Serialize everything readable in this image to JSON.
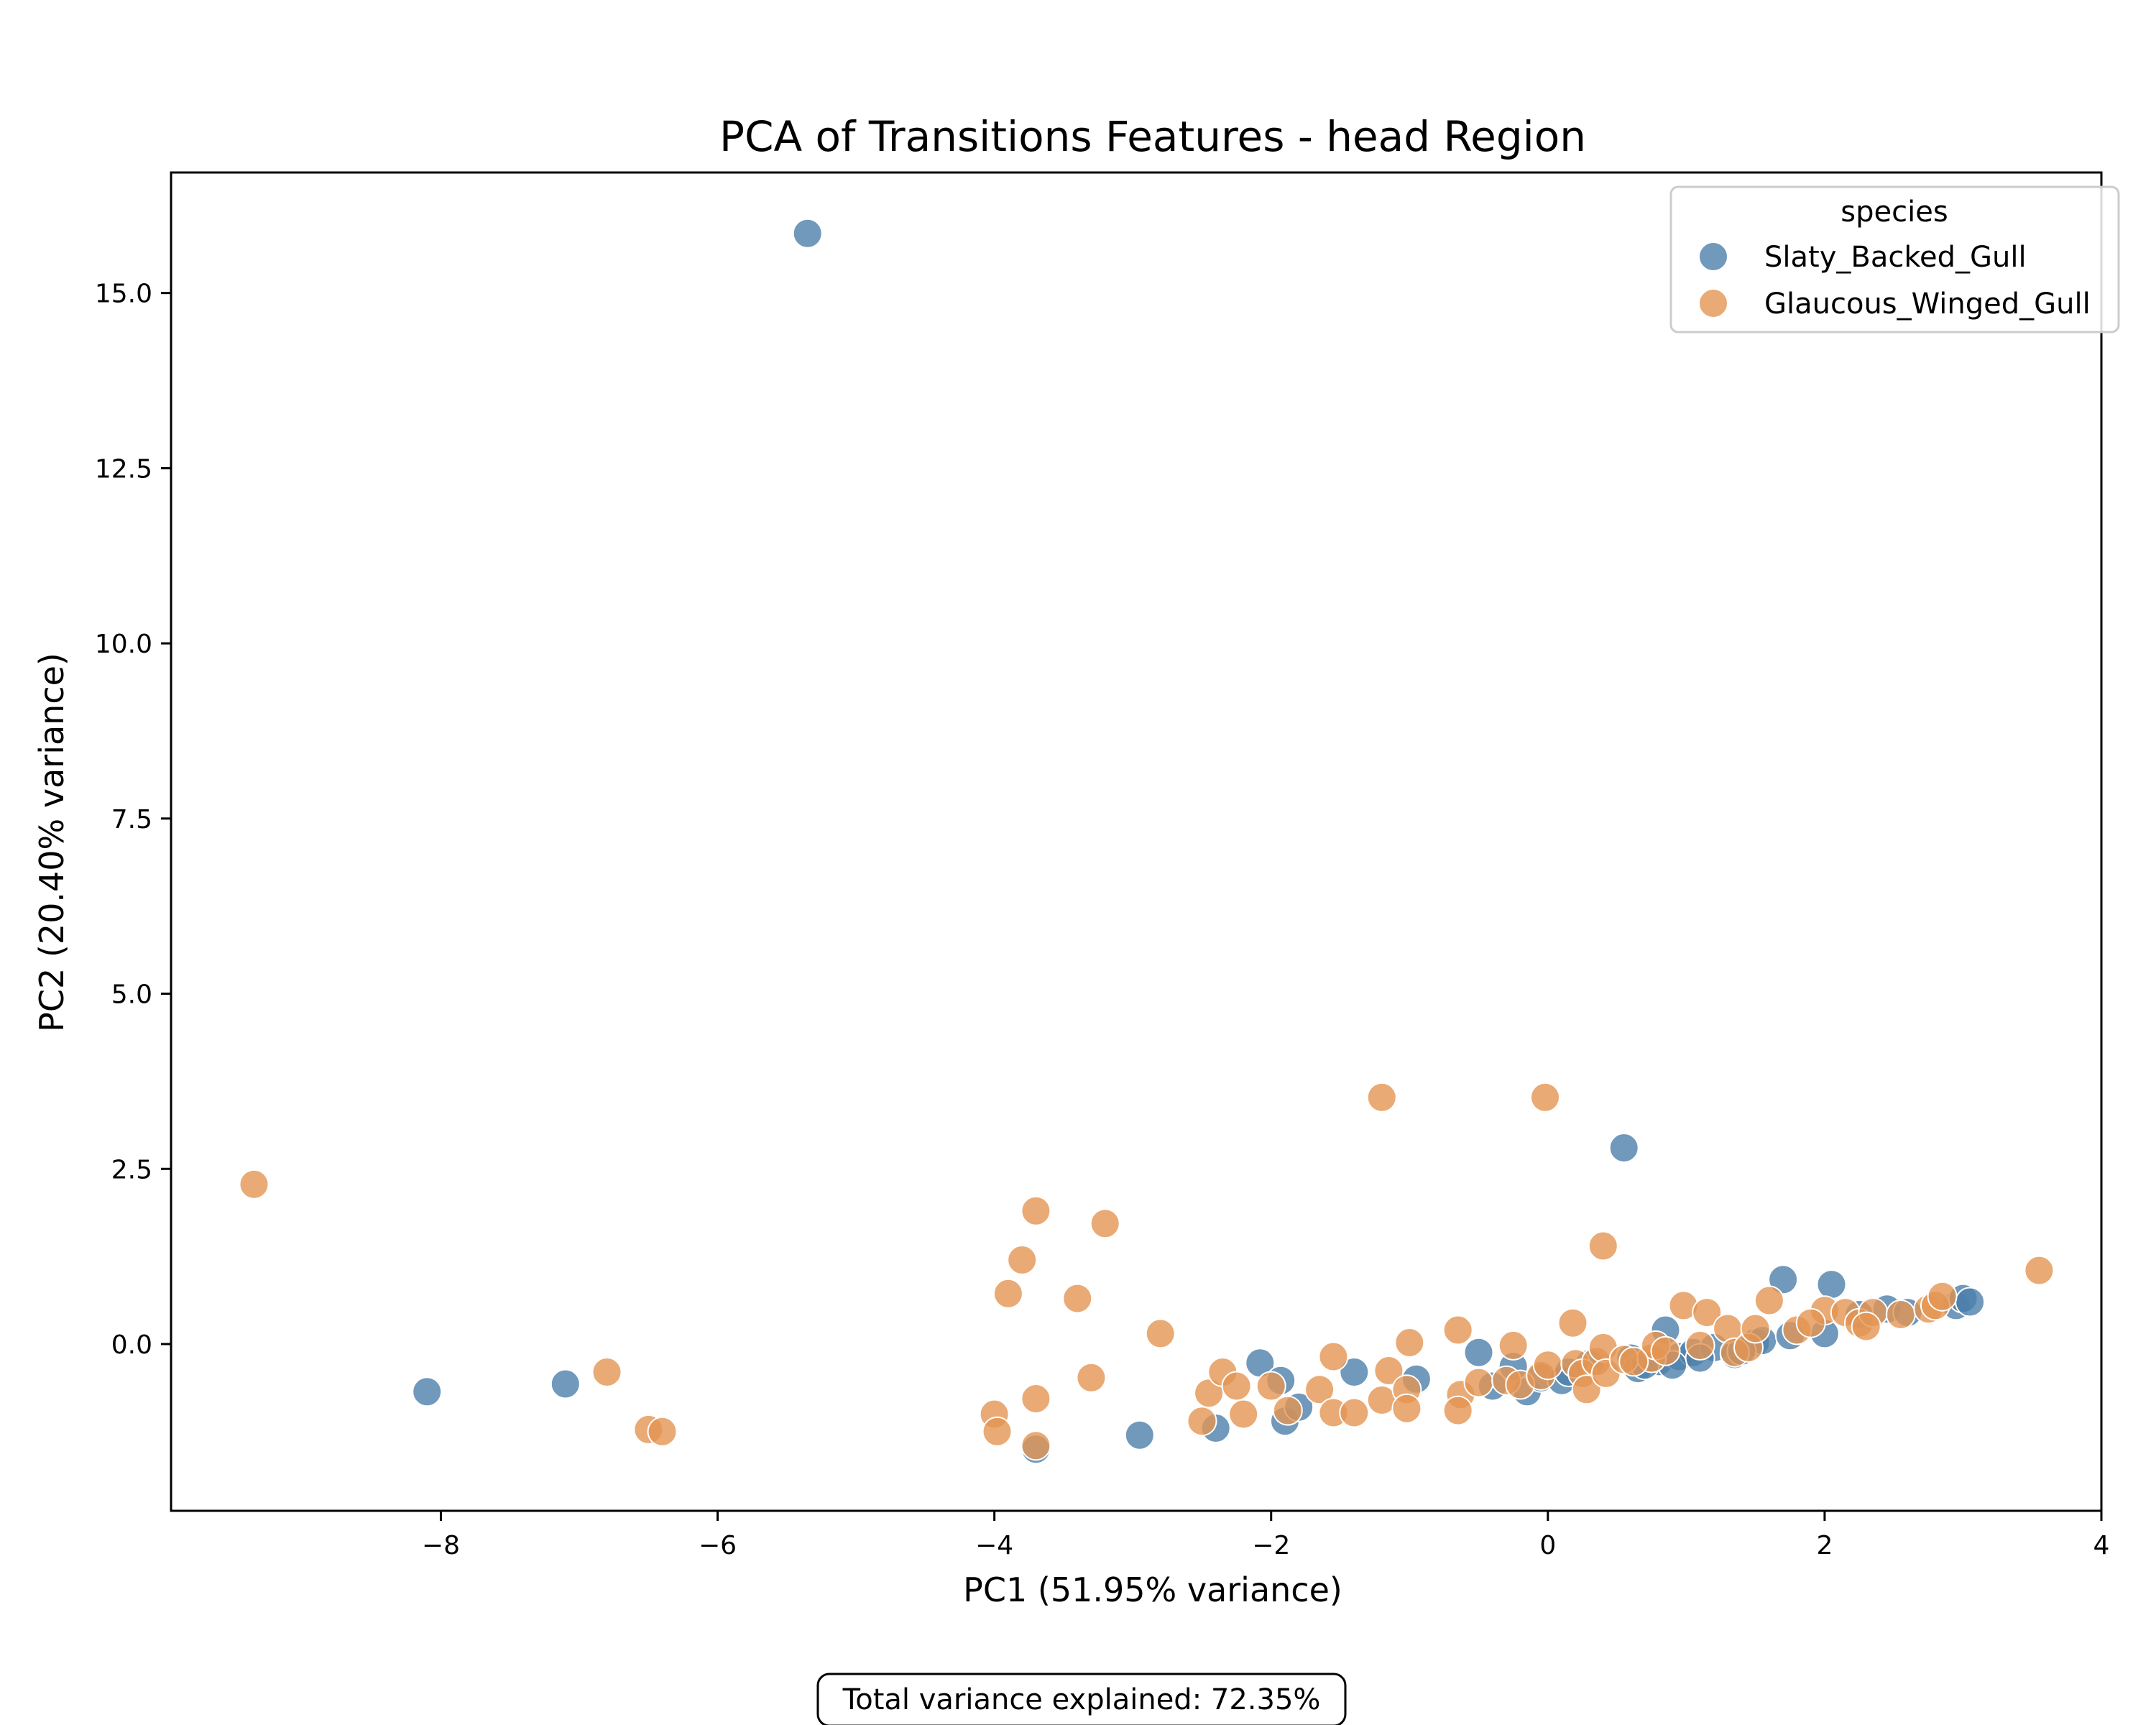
{
  "chart_data": {
    "type": "scatter",
    "title": "PCA of Transitions Features - head Region",
    "xlabel": "PC1 (51.95% variance)",
    "ylabel": "PC2 (20.40% variance)",
    "xlim": [
      -9.95,
      4.0
    ],
    "ylim": [
      -2.38,
      16.72
    ],
    "xticks": [
      -8,
      -6,
      -4,
      -2,
      0,
      2,
      4
    ],
    "xtick_labels": [
      "−8",
      "−6",
      "−4",
      "−2",
      "0",
      "2",
      "4"
    ],
    "yticks": [
      0.0,
      2.5,
      5.0,
      7.5,
      10.0,
      12.5,
      15.0
    ],
    "ytick_labels": [
      "0.0",
      "2.5",
      "5.0",
      "7.5",
      "10.0",
      "12.5",
      "15.0"
    ],
    "grid": false,
    "legend": {
      "title": "species",
      "placement": "top-right"
    },
    "annotation": "Total variance explained: 72.35%",
    "series": [
      {
        "name": "Slaty_Backed_Gull",
        "color": "#4c7fab",
        "points": [
          [
            -5.35,
            15.85
          ],
          [
            -8.1,
            -0.68
          ],
          [
            -7.1,
            -0.57
          ],
          [
            -3.7,
            -1.5
          ],
          [
            -2.95,
            -1.3
          ],
          [
            -2.4,
            -1.2
          ],
          [
            -2.08,
            -0.27
          ],
          [
            -1.93,
            -0.52
          ],
          [
            -1.9,
            -1.1
          ],
          [
            -1.8,
            -0.9
          ],
          [
            -1.4,
            -0.4
          ],
          [
            -0.95,
            -0.5
          ],
          [
            -0.5,
            -0.12
          ],
          [
            -0.25,
            -0.32
          ],
          [
            -0.15,
            -0.68
          ],
          [
            -0.05,
            -0.48
          ],
          [
            0.1,
            -0.52
          ],
          [
            0.55,
            2.8
          ],
          [
            0.6,
            -0.2
          ],
          [
            0.65,
            -0.35
          ],
          [
            0.8,
            -0.25
          ],
          [
            0.85,
            0.2
          ],
          [
            0.95,
            -0.18
          ],
          [
            1.05,
            -0.12
          ],
          [
            1.2,
            -0.05
          ],
          [
            1.35,
            -0.15
          ],
          [
            1.5,
            0.02
          ],
          [
            1.55,
            0.05
          ],
          [
            1.7,
            0.92
          ],
          [
            1.75,
            0.12
          ],
          [
            2.0,
            0.15
          ],
          [
            2.05,
            0.85
          ],
          [
            2.25,
            0.42
          ],
          [
            2.45,
            0.5
          ],
          [
            2.6,
            0.45
          ],
          [
            2.95,
            0.55
          ],
          [
            3.0,
            0.65
          ],
          [
            3.05,
            0.6
          ],
          [
            0.3,
            -0.28
          ],
          [
            0.9,
            -0.3
          ],
          [
            1.1,
            -0.2
          ],
          [
            1.4,
            -0.1
          ],
          [
            0.7,
            -0.3
          ],
          [
            -0.4,
            -0.6
          ],
          [
            0.15,
            -0.4
          ]
        ]
      },
      {
        "name": "Glaucous_Winged_Gull",
        "color": "#e39552",
        "points": [
          [
            -9.35,
            2.28
          ],
          [
            -6.8,
            -0.4
          ],
          [
            -6.5,
            -1.22
          ],
          [
            -6.4,
            -1.25
          ],
          [
            -4.0,
            -1.0
          ],
          [
            -3.98,
            -1.25
          ],
          [
            -3.9,
            0.72
          ],
          [
            -3.8,
            1.2
          ],
          [
            -3.7,
            1.9
          ],
          [
            -3.7,
            -0.78
          ],
          [
            -3.7,
            -1.45
          ],
          [
            -3.4,
            0.65
          ],
          [
            -3.3,
            -0.48
          ],
          [
            -3.2,
            1.72
          ],
          [
            -2.8,
            0.15
          ],
          [
            -2.5,
            -1.1
          ],
          [
            -2.45,
            -0.7
          ],
          [
            -2.35,
            -0.4
          ],
          [
            -2.25,
            -0.6
          ],
          [
            -2.2,
            -1.0
          ],
          [
            -2.0,
            -0.6
          ],
          [
            -1.88,
            -0.95
          ],
          [
            -1.65,
            -0.65
          ],
          [
            -1.55,
            -0.18
          ],
          [
            -1.55,
            -0.98
          ],
          [
            -1.4,
            -0.98
          ],
          [
            -1.2,
            3.52
          ],
          [
            -1.15,
            -0.38
          ],
          [
            -1.2,
            -0.8
          ],
          [
            -1.02,
            -0.65
          ],
          [
            -1.0,
            0.02
          ],
          [
            -1.02,
            -0.92
          ],
          [
            -0.65,
            0.2
          ],
          [
            -0.63,
            -0.72
          ],
          [
            -0.65,
            -0.95
          ],
          [
            -0.5,
            -0.55
          ],
          [
            -0.3,
            -0.52
          ],
          [
            -0.25,
            -0.02
          ],
          [
            -0.2,
            -0.58
          ],
          [
            -0.05,
            -0.45
          ],
          [
            -0.02,
            3.52
          ],
          [
            0.0,
            -0.3
          ],
          [
            0.18,
            0.3
          ],
          [
            0.2,
            -0.28
          ],
          [
            0.25,
            -0.42
          ],
          [
            0.28,
            -0.65
          ],
          [
            0.35,
            -0.25
          ],
          [
            0.4,
            1.4
          ],
          [
            0.4,
            -0.05
          ],
          [
            0.42,
            -0.42
          ],
          [
            0.55,
            -0.22
          ],
          [
            0.75,
            -0.2
          ],
          [
            0.78,
            -0.02
          ],
          [
            0.85,
            -0.1
          ],
          [
            0.98,
            0.55
          ],
          [
            1.1,
            -0.02
          ],
          [
            1.15,
            0.45
          ],
          [
            1.3,
            0.22
          ],
          [
            1.35,
            -0.12
          ],
          [
            1.45,
            -0.05
          ],
          [
            1.5,
            0.22
          ],
          [
            1.6,
            0.62
          ],
          [
            1.8,
            0.2
          ],
          [
            2.0,
            0.48
          ],
          [
            2.15,
            0.45
          ],
          [
            2.25,
            0.3
          ],
          [
            2.35,
            0.45
          ],
          [
            2.55,
            0.42
          ],
          [
            2.75,
            0.5
          ],
          [
            2.8,
            0.55
          ],
          [
            2.85,
            0.68
          ],
          [
            3.55,
            1.05
          ],
          [
            0.62,
            -0.25
          ],
          [
            1.9,
            0.3
          ],
          [
            2.3,
            0.25
          ]
        ]
      }
    ]
  }
}
